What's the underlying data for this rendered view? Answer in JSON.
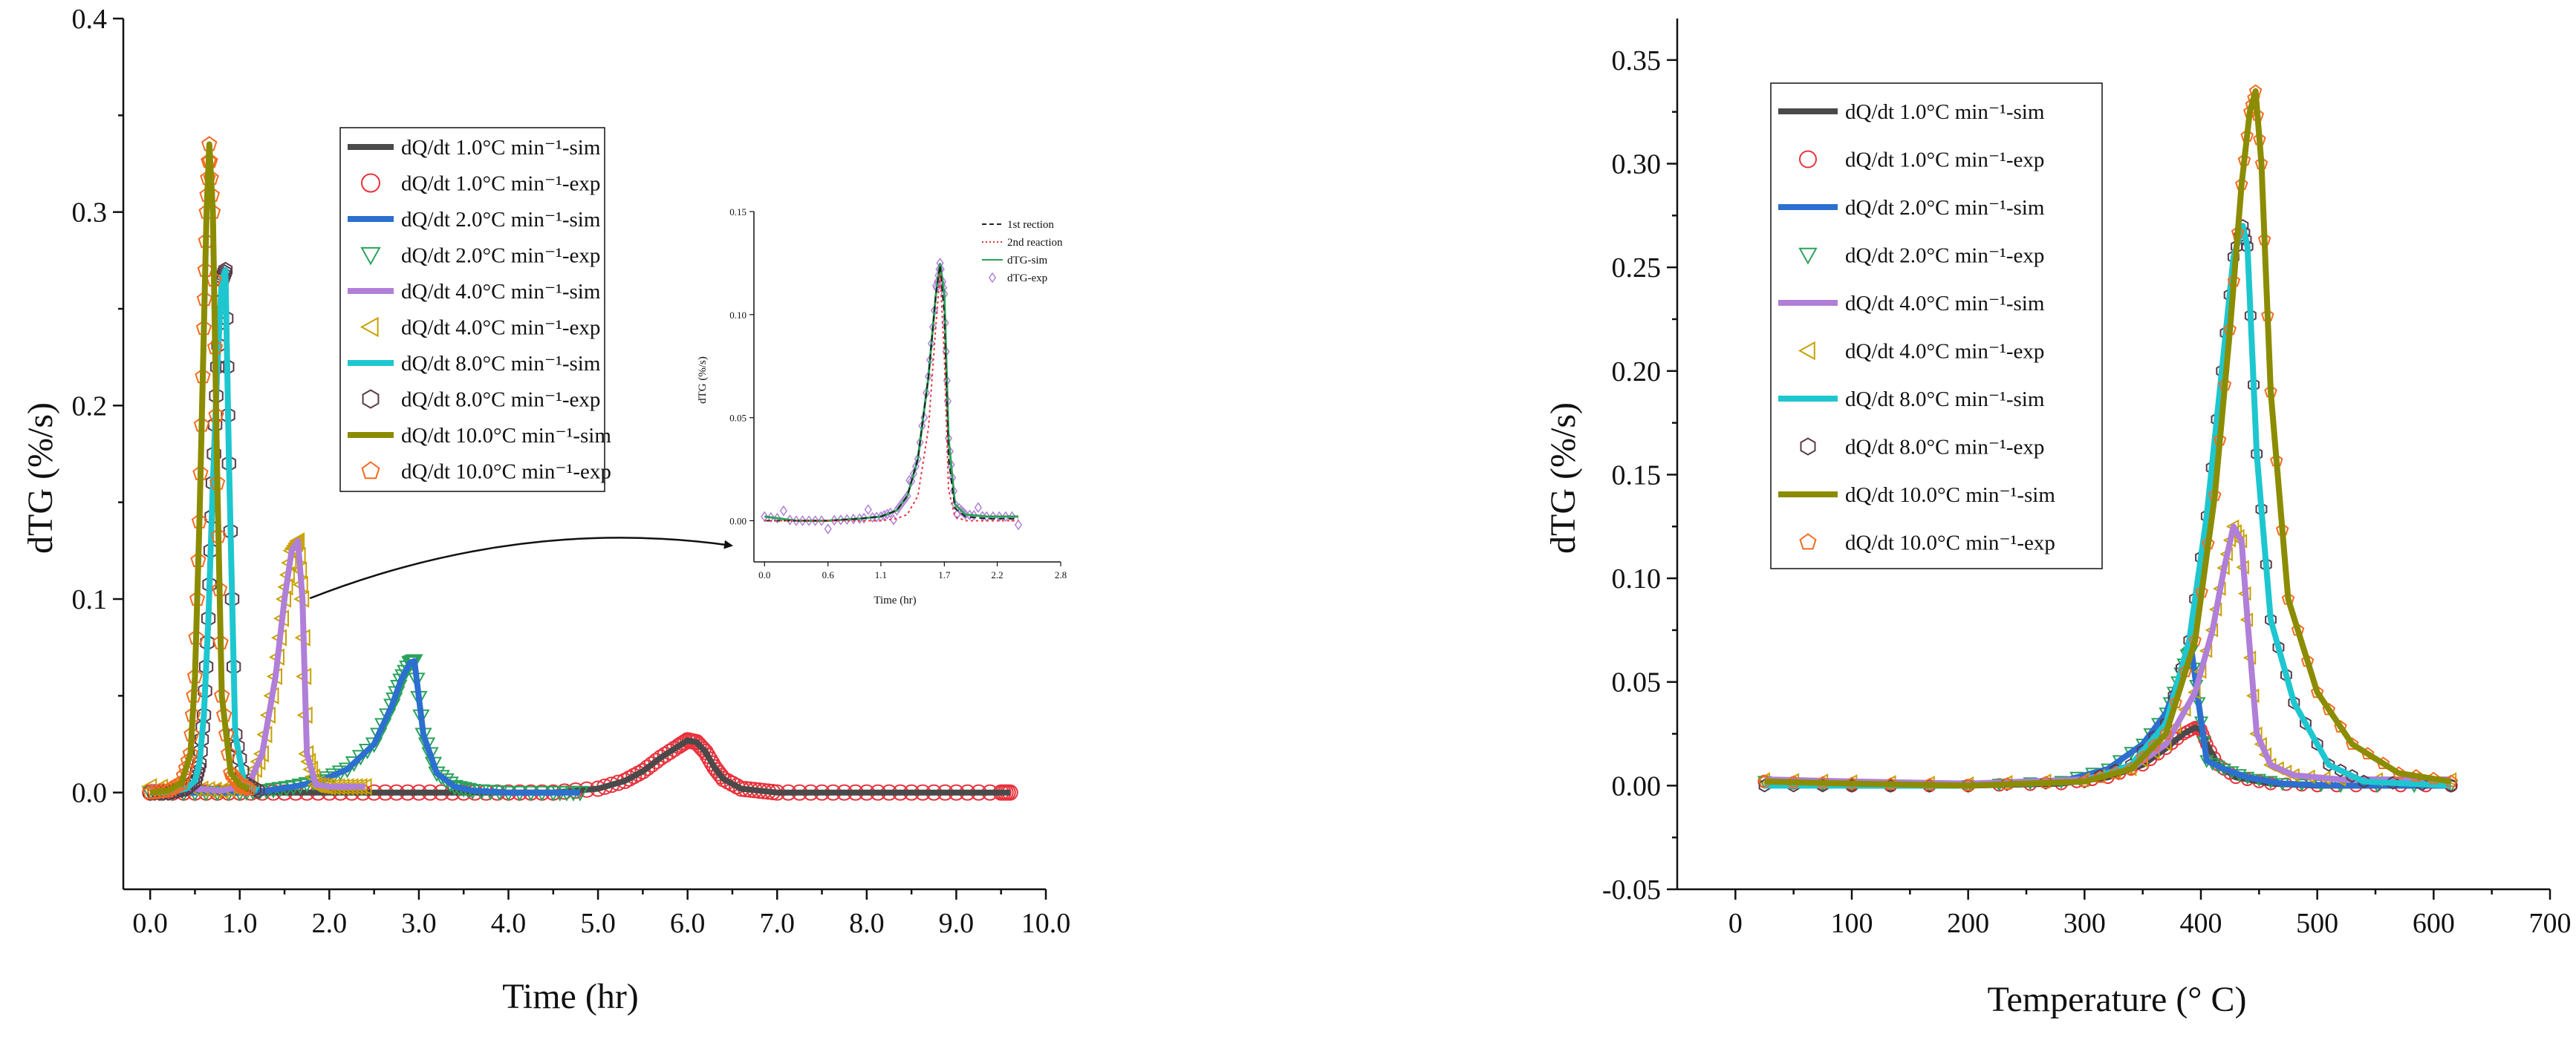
{
  "chart_data": [
    {
      "type": "line+scatter",
      "xlabel": "Time (hr)",
      "ylabel": "dTG (%/s)",
      "xlim": [
        -0.3,
        10.0
      ],
      "ylim": [
        -0.05,
        0.4
      ],
      "xticks": [
        "0.0",
        "1.0",
        "2.0",
        "3.0",
        "4.0",
        "5.0",
        "6.0",
        "7.0",
        "8.0",
        "9.0",
        "10.0"
      ],
      "yticks": [
        "0.0",
        "0.1",
        "0.2",
        "0.3",
        "0.4"
      ],
      "legend": [
        {
          "label": "dQ/dt 1.0°C min⁻¹-sim",
          "kind": "line",
          "color": "#4a4a4a"
        },
        {
          "label": "dQ/dt 1.0°C min⁻¹-exp",
          "kind": "circle",
          "color": "#e8323c"
        },
        {
          "label": "dQ/dt 2.0°C min⁻¹-sim",
          "kind": "line",
          "color": "#2c6fd0"
        },
        {
          "label": "dQ/dt 2.0°C min⁻¹-exp",
          "kind": "triangle-down",
          "color": "#2aa35a"
        },
        {
          "label": "dQ/dt 4.0°C min⁻¹-sim",
          "kind": "line",
          "color": "#b07fd8"
        },
        {
          "label": "dQ/dt 4.0°C min⁻¹-exp",
          "kind": "triangle-left",
          "color": "#c9a100"
        },
        {
          "label": "dQ/dt 8.0°C min⁻¹-sim",
          "kind": "line",
          "color": "#1ec7cf"
        },
        {
          "label": "dQ/dt 8.0°C min⁻¹-exp",
          "kind": "hexagon",
          "color": "#5a3a4a"
        },
        {
          "label": "dQ/dt 10.0°C min⁻¹-sim",
          "kind": "line",
          "color": "#8c8c00"
        },
        {
          "label": "dQ/dt 10.0°C min⁻¹-exp",
          "kind": "pentagon",
          "color": "#f56a1f"
        }
      ],
      "series": [
        {
          "name": "1.0°C min⁻¹",
          "color_sim": "#4a4a4a",
          "color_exp": "#e8323c",
          "marker": "circle",
          "x": [
            0.0,
            0.5,
            1.0,
            1.5,
            2.0,
            2.5,
            3.0,
            3.5,
            4.0,
            4.5,
            5.0,
            5.3,
            5.5,
            5.7,
            5.9,
            6.0,
            6.1,
            6.2,
            6.3,
            6.4,
            6.6,
            6.8,
            7.0,
            7.5,
            8.0,
            8.5,
            9.0,
            9.5,
            9.6
          ],
          "y": [
            0.0,
            0.0,
            0.0,
            0.0,
            0.0,
            0.0,
            0.0,
            0.0,
            0.0,
            0.0,
            0.002,
            0.006,
            0.011,
            0.018,
            0.024,
            0.027,
            0.026,
            0.021,
            0.013,
            0.007,
            0.002,
            0.001,
            0.0,
            0.0,
            0.0,
            0.0,
            0.0,
            0.0,
            0.0
          ]
        },
        {
          "name": "2.0°C min⁻¹",
          "color_sim": "#2c6fd0",
          "color_exp": "#2aa35a",
          "marker": "triangle-down",
          "x": [
            0.0,
            0.5,
            1.0,
            1.3,
            1.6,
            1.9,
            2.2,
            2.5,
            2.7,
            2.8,
            2.9,
            2.95,
            3.05,
            3.2,
            3.4,
            3.6,
            4.0,
            4.5,
            4.8
          ],
          "y": [
            0.0,
            0.0,
            0.0,
            0.001,
            0.003,
            0.006,
            0.012,
            0.025,
            0.045,
            0.058,
            0.067,
            0.068,
            0.03,
            0.01,
            0.003,
            0.001,
            0.0,
            0.0,
            0.0
          ]
        },
        {
          "name": "4.0°C min⁻¹",
          "color_sim": "#b07fd8",
          "color_exp": "#c9a100",
          "marker": "triangle-left",
          "x": [
            0.0,
            0.5,
            0.8,
            1.1,
            1.25,
            1.4,
            1.5,
            1.58,
            1.65,
            1.7,
            1.75,
            1.85,
            2.0,
            2.2,
            2.4
          ],
          "y": [
            0.003,
            0.002,
            0.001,
            0.004,
            0.02,
            0.06,
            0.1,
            0.125,
            0.13,
            0.1,
            0.02,
            0.004,
            0.003,
            0.003,
            0.003
          ]
        },
        {
          "name": "8.0°C min⁻¹",
          "color_sim": "#1ec7cf",
          "color_exp": "#5a3a4a",
          "marker": "hexagon",
          "x": [
            0.0,
            0.2,
            0.4,
            0.5,
            0.55,
            0.6,
            0.65,
            0.7,
            0.75,
            0.8,
            0.84,
            0.88,
            0.95,
            1.05,
            1.2
          ],
          "y": [
            0.0,
            0.0,
            0.002,
            0.006,
            0.015,
            0.04,
            0.09,
            0.16,
            0.22,
            0.265,
            0.27,
            0.17,
            0.03,
            0.005,
            0.001
          ]
        },
        {
          "name": "10.0°C min⁻¹",
          "color_sim": "#8c8c00",
          "color_exp": "#f56a1f",
          "marker": "pentagon",
          "x": [
            0.0,
            0.2,
            0.35,
            0.45,
            0.5,
            0.55,
            0.6,
            0.63,
            0.66,
            0.7,
            0.75,
            0.8,
            0.9,
            1.0,
            1.1
          ],
          "y": [
            0.0,
            0.001,
            0.005,
            0.02,
            0.06,
            0.14,
            0.24,
            0.3,
            0.335,
            0.3,
            0.16,
            0.05,
            0.01,
            0.004,
            0.002
          ]
        }
      ],
      "annotation": {
        "type": "arrow",
        "from": [
          1.7,
          0.105
        ],
        "to": "inset"
      },
      "inset": {
        "xlabel": "Time (hr)",
        "ylabel": "dTG (%/s)",
        "xlim": [
          -0.1,
          2.8
        ],
        "ylim": [
          -0.02,
          0.15
        ],
        "xticks": [
          "0.0",
          "0.6",
          "1.1",
          "1.7",
          "2.2",
          "2.8"
        ],
        "yticks": [
          "0.00",
          "0.05",
          "0.10",
          "0.15"
        ],
        "legend": [
          {
            "label": "1st rection",
            "kind": "dashed",
            "color": "#222222"
          },
          {
            "label": "2nd reaction",
            "kind": "dotted",
            "color": "#e8323c"
          },
          {
            "label": "dTG-sim",
            "kind": "line",
            "color": "#2aa35a"
          },
          {
            "label": "dTG-exp",
            "kind": "diamond",
            "color": "#b07fd8"
          }
        ],
        "x": [
          0.0,
          0.3,
          0.6,
          0.9,
          1.1,
          1.25,
          1.35,
          1.45,
          1.55,
          1.62,
          1.66,
          1.7,
          1.74,
          1.8,
          1.9,
          2.1,
          2.4
        ],
        "sim": [
          0.002,
          0.0,
          0.0,
          0.001,
          0.002,
          0.005,
          0.012,
          0.03,
          0.07,
          0.11,
          0.125,
          0.11,
          0.04,
          0.008,
          0.003,
          0.002,
          0.002
        ],
        "first": [
          0.0,
          0.0,
          0.0,
          0.001,
          0.002,
          0.005,
          0.012,
          0.03,
          0.07,
          0.11,
          0.124,
          0.1,
          0.03,
          0.006,
          0.002,
          0.001,
          0.001
        ],
        "second": [
          0.0,
          0.0,
          0.0,
          0.0,
          0.0,
          0.001,
          0.003,
          0.012,
          0.045,
          0.095,
          0.12,
          0.08,
          0.015,
          0.002,
          0.0,
          0.0,
          0.0
        ]
      }
    },
    {
      "type": "line+scatter",
      "xlabel": "Temperature (° C)",
      "ylabel": "dTG (%/s)",
      "xlim": [
        -50,
        700
      ],
      "ylim": [
        -0.05,
        0.37
      ],
      "xticks": [
        "0",
        "100",
        "200",
        "300",
        "400",
        "500",
        "600",
        "700"
      ],
      "yticks": [
        "-0.05",
        "0.00",
        "0.05",
        "0.10",
        "0.15",
        "0.20",
        "0.25",
        "0.30",
        "0.35"
      ],
      "legend": [
        {
          "label": "dQ/dt 1.0°C min⁻¹-sim",
          "kind": "line",
          "color": "#4a4a4a"
        },
        {
          "label": "dQ/dt 1.0°C min⁻¹-exp",
          "kind": "circle",
          "color": "#e8323c"
        },
        {
          "label": "dQ/dt 2.0°C min⁻¹-sim",
          "kind": "line",
          "color": "#2c6fd0"
        },
        {
          "label": "dQ/dt 2.0°C min⁻¹-exp",
          "kind": "triangle-down",
          "color": "#2aa35a"
        },
        {
          "label": "dQ/dt 4.0°C min⁻¹-sim",
          "kind": "line",
          "color": "#b07fd8"
        },
        {
          "label": "dQ/dt 4.0°C min⁻¹-exp",
          "kind": "triangle-left",
          "color": "#c9a100"
        },
        {
          "label": "dQ/dt 8.0°C min⁻¹-sim",
          "kind": "line",
          "color": "#1ec7cf"
        },
        {
          "label": "dQ/dt 8.0°C min⁻¹-exp",
          "kind": "hexagon",
          "color": "#5a3a4a"
        },
        {
          "label": "dQ/dt 10.0°C min⁻¹-sim",
          "kind": "line",
          "color": "#8c8c00"
        },
        {
          "label": "dQ/dt 10.0°C min⁻¹-exp",
          "kind": "pentagon",
          "color": "#f56a1f"
        }
      ],
      "series": [
        {
          "name": "1.0°C min⁻¹",
          "color_sim": "#4a4a4a",
          "color_exp": "#e8323c",
          "marker": "circle",
          "x": [
            25,
            100,
            200,
            280,
            320,
            350,
            370,
            385,
            395,
            400,
            405,
            415,
            430,
            460,
            500,
            550,
            615
          ],
          "y": [
            0.002,
            0.0,
            0.0,
            0.001,
            0.004,
            0.01,
            0.018,
            0.025,
            0.028,
            0.027,
            0.02,
            0.01,
            0.004,
            0.001,
            0.0,
            0.0,
            0.0
          ]
        },
        {
          "name": "2.0°C min⁻¹",
          "color_sim": "#2c6fd0",
          "color_exp": "#2aa35a",
          "marker": "triangle-down",
          "x": [
            25,
            100,
            200,
            280,
            320,
            350,
            370,
            380,
            388,
            392,
            398,
            405,
            420,
            440,
            470,
            520,
            615
          ],
          "y": [
            0.002,
            0.0,
            0.0,
            0.002,
            0.008,
            0.02,
            0.035,
            0.05,
            0.063,
            0.065,
            0.04,
            0.012,
            0.008,
            0.004,
            0.001,
            0.0,
            0.0
          ]
        },
        {
          "name": "4.0°C min⁻¹",
          "color_sim": "#b07fd8",
          "color_exp": "#c9a100",
          "marker": "triangle-left",
          "x": [
            25,
            100,
            200,
            300,
            340,
            370,
            395,
            410,
            420,
            428,
            435,
            440,
            448,
            460,
            480,
            520,
            615
          ],
          "y": [
            0.003,
            0.002,
            0.001,
            0.003,
            0.008,
            0.02,
            0.045,
            0.075,
            0.105,
            0.125,
            0.118,
            0.08,
            0.025,
            0.01,
            0.005,
            0.003,
            0.003
          ]
        },
        {
          "name": "8.0°C min⁻¹",
          "color_sim": "#1ec7cf",
          "color_exp": "#5a3a4a",
          "marker": "hexagon",
          "x": [
            25,
            100,
            200,
            300,
            340,
            370,
            390,
            405,
            418,
            428,
            436,
            440,
            448,
            460,
            480,
            510,
            540,
            615
          ],
          "y": [
            0.0,
            0.0,
            0.0,
            0.002,
            0.01,
            0.03,
            0.07,
            0.13,
            0.2,
            0.255,
            0.27,
            0.26,
            0.16,
            0.08,
            0.04,
            0.01,
            0.002,
            0.0
          ]
        },
        {
          "name": "10.0°C min⁻¹",
          "color_sim": "#8c8c00",
          "color_exp": "#f56a1f",
          "marker": "pentagon",
          "x": [
            25,
            100,
            200,
            300,
            340,
            370,
            395,
            412,
            425,
            435,
            442,
            447,
            452,
            460,
            475,
            500,
            530,
            570,
            615
          ],
          "y": [
            0.002,
            0.001,
            0.0,
            0.002,
            0.008,
            0.025,
            0.07,
            0.14,
            0.22,
            0.29,
            0.325,
            0.335,
            0.3,
            0.19,
            0.09,
            0.045,
            0.02,
            0.006,
            0.002
          ]
        }
      ]
    }
  ]
}
